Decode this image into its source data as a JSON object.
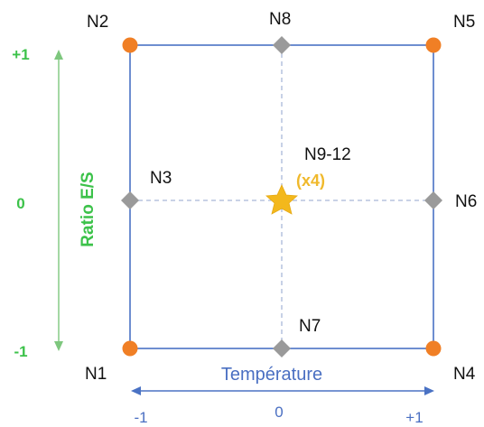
{
  "colors": {
    "box": "#4a72c4",
    "dashed": "#a9b8d8",
    "corner": "#f07f25",
    "edge_mid": "#9a9a9a",
    "center_star": "#f3b81c",
    "y_axis": "#3cc24a",
    "x_axis": "#4a72c4"
  },
  "icons": {
    "corner": "circle",
    "edge_mid": "diamond",
    "center": "star"
  },
  "axes": {
    "y": {
      "title": "Ratio E/S",
      "ticks": [
        "+1",
        "0",
        "-1"
      ]
    },
    "x": {
      "title": "Température",
      "ticks": [
        "-1",
        "0",
        "+1"
      ]
    }
  },
  "nodes": {
    "n1": "N1",
    "n2": "N2",
    "n3": "N3",
    "n4": "N4",
    "n5": "N5",
    "n6": "N6",
    "n7": "N7",
    "n8": "N8",
    "center": "N9-12",
    "center_multiplier": "(x4)"
  }
}
